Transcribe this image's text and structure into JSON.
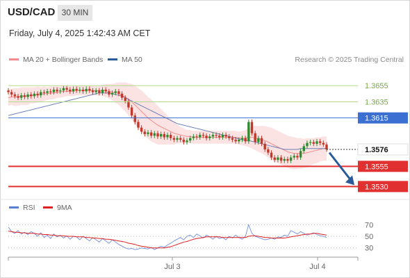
{
  "header": {
    "symbol": "USD/CAD",
    "timeframe": "30 MIN"
  },
  "timestamp": "Friday, July 4, 2025 1:42:43 AM CET",
  "credit": "Research © 2025 Trading Central",
  "legend": [
    {
      "label": "MA 20 + Bollinger Bands",
      "color": "#f28c8c"
    },
    {
      "label": "MA 50",
      "color": "#2a5a9a"
    }
  ],
  "rsi_legend": [
    {
      "label": "RSI",
      "color": "#5b7fd6"
    },
    {
      "label": "9MA",
      "color": "#e02020"
    }
  ],
  "colors": {
    "up": "#2e8b2e",
    "down": "#c0392b",
    "resistance": "#b5d98a",
    "pivot": "#3b6fd1",
    "support": "#e03030",
    "arrow": "#2a5a9a"
  },
  "chart_data": [
    {
      "type": "candlestick",
      "y_range": [
        1.352,
        1.3675
      ],
      "x_labels": [
        "Jul 3",
        "Jul 4"
      ],
      "current_price": "1.3576",
      "levels": [
        {
          "label": "1.3655",
          "value": 1.3655,
          "kind": "resistance"
        },
        {
          "label": "1.3635",
          "value": 1.3635,
          "kind": "resistance"
        },
        {
          "label": "1.3615",
          "value": 1.3615,
          "kind": "pivot"
        },
        {
          "label": "1.3555",
          "value": 1.3555,
          "kind": "support"
        },
        {
          "label": "1.3530",
          "value": 1.353,
          "kind": "support"
        }
      ],
      "close": [
        1.3647,
        1.3644,
        1.3642,
        1.364,
        1.3643,
        1.3641,
        1.3644,
        1.3642,
        1.3645,
        1.3643,
        1.3647,
        1.3646,
        1.3648,
        1.3647,
        1.365,
        1.3648,
        1.3649,
        1.3652,
        1.365,
        1.3648,
        1.3651,
        1.3649,
        1.365,
        1.3648,
        1.3651,
        1.3649,
        1.3647,
        1.3649,
        1.3646,
        1.365,
        1.3648,
        1.3644,
        1.3646,
        1.3648,
        1.3645,
        1.364,
        1.3636,
        1.3628,
        1.3618,
        1.361,
        1.3603,
        1.3598,
        1.3595,
        1.3597,
        1.3593,
        1.3596,
        1.3592,
        1.3595,
        1.3591,
        1.3594,
        1.359,
        1.3588,
        1.359,
        1.3588,
        1.3585,
        1.3587,
        1.359,
        1.3592,
        1.3591,
        1.3594,
        1.3593,
        1.359,
        1.3592,
        1.3594,
        1.3593,
        1.3591,
        1.3594,
        1.3592,
        1.359,
        1.3588,
        1.3586,
        1.3588,
        1.359,
        1.3586,
        1.361,
        1.3596,
        1.3585,
        1.359,
        1.3583,
        1.3576,
        1.3572,
        1.3566,
        1.3563,
        1.3566,
        1.3562,
        1.3564,
        1.3562,
        1.3566,
        1.3568,
        1.3566,
        1.3574,
        1.358,
        1.3584,
        1.3585,
        1.3583,
        1.3586,
        1.3584,
        1.3582,
        1.3576
      ],
      "ma20": [
        1.364,
        1.3641,
        1.3641,
        1.3641,
        1.3642,
        1.3642,
        1.3642,
        1.3643,
        1.3643,
        1.3644,
        1.3644,
        1.3645,
        1.3645,
        1.3646,
        1.3646,
        1.3647,
        1.3647,
        1.3648,
        1.3648,
        1.3648,
        1.3648,
        1.3649,
        1.3649,
        1.3649,
        1.3649,
        1.3649,
        1.3649,
        1.3649,
        1.3649,
        1.3649,
        1.3649,
        1.3648,
        1.3647,
        1.3646,
        1.3645,
        1.3643,
        1.3641,
        1.3638,
        1.3635,
        1.3631,
        1.3627,
        1.3623,
        1.3619,
        1.3615,
        1.3612,
        1.3609,
        1.3606,
        1.3604,
        1.3602,
        1.36,
        1.3598,
        1.3596,
        1.3595,
        1.3594,
        1.3593,
        1.3592,
        1.3592,
        1.3591,
        1.3591,
        1.3591,
        1.3591,
        1.3591,
        1.3591,
        1.3591,
        1.3591,
        1.3591,
        1.3591,
        1.3591,
        1.3591,
        1.3591,
        1.3591,
        1.359,
        1.359,
        1.359,
        1.3591,
        1.3591,
        1.359,
        1.3589,
        1.3588,
        1.3587,
        1.3585,
        1.3583,
        1.3581,
        1.3579,
        1.3577,
        1.3575,
        1.3573,
        1.3572,
        1.3571,
        1.3571,
        1.3571,
        1.3571,
        1.3572,
        1.3573,
        1.3574,
        1.3575,
        1.3576,
        1.3577,
        1.3577
      ],
      "ma50": [
        1.3618,
        1.3619,
        1.362,
        1.3621,
        1.3622,
        1.3623,
        1.3624,
        1.3625,
        1.3626,
        1.3627,
        1.3628,
        1.3629,
        1.363,
        1.3631,
        1.3632,
        1.3633,
        1.3634,
        1.3635,
        1.3636,
        1.3637,
        1.3638,
        1.3639,
        1.364,
        1.3641,
        1.3642,
        1.3643,
        1.3644,
        1.3645,
        1.3646,
        1.3646,
        1.3646,
        1.3646,
        1.3645,
        1.3644,
        1.3643,
        1.3642,
        1.364,
        1.3638,
        1.3636,
        1.3634,
        1.3632,
        1.363,
        1.3628,
        1.3626,
        1.3624,
        1.3622,
        1.362,
        1.3618,
        1.3616,
        1.3614,
        1.3612,
        1.361,
        1.3608,
        1.3607,
        1.3606,
        1.3605,
        1.3604,
        1.3603,
        1.3602,
        1.3601,
        1.36,
        1.3599,
        1.3598,
        1.3597,
        1.3596,
        1.3595,
        1.3594,
        1.3593,
        1.3592,
        1.3591,
        1.359,
        1.3589,
        1.3588,
        1.3587,
        1.3587,
        1.3586,
        1.3585,
        1.3584,
        1.3583,
        1.3582,
        1.3581,
        1.358,
        1.3579,
        1.3578,
        1.3577,
        1.3576,
        1.3576,
        1.3576,
        1.3576,
        1.3576,
        1.3577,
        1.3577,
        1.3577,
        1.3577,
        1.3577,
        1.3577,
        1.3577,
        1.3577,
        1.3577
      ],
      "bb_width": [
        0.001,
        0.001,
        0.0011,
        0.0011,
        0.0011,
        0.0011,
        0.0011,
        0.001,
        0.001,
        0.001,
        0.0009,
        0.0009,
        0.0008,
        0.0008,
        0.0008,
        0.0007,
        0.0007,
        0.0007,
        0.0006,
        0.0006,
        0.0006,
        0.0006,
        0.0006,
        0.0006,
        0.0006,
        0.0006,
        0.0006,
        0.0006,
        0.0006,
        0.0007,
        0.0008,
        0.0009,
        0.001,
        0.0012,
        0.0014,
        0.0016,
        0.0018,
        0.002,
        0.0022,
        0.0024,
        0.0025,
        0.0026,
        0.0026,
        0.0026,
        0.0026,
        0.0025,
        0.0024,
        0.0022,
        0.002,
        0.0018,
        0.0016,
        0.0014,
        0.0012,
        0.001,
        0.0009,
        0.0008,
        0.0008,
        0.0008,
        0.0008,
        0.0008,
        0.0008,
        0.0008,
        0.0008,
        0.0008,
        0.0008,
        0.0008,
        0.0008,
        0.0008,
        0.0008,
        0.0008,
        0.0008,
        0.0008,
        0.0009,
        0.001,
        0.0012,
        0.0014,
        0.0015,
        0.0016,
        0.0017,
        0.0018,
        0.0019,
        0.002,
        0.002,
        0.002,
        0.002,
        0.002,
        0.002,
        0.002,
        0.002,
        0.0019,
        0.0019,
        0.0018,
        0.0018,
        0.0017,
        0.0016,
        0.0016,
        0.0015,
        0.0015,
        0.0015
      ],
      "forecast_target": 1.353
    },
    {
      "type": "line",
      "title": "RSI",
      "y_range": [
        20,
        80
      ],
      "y_ticks": [
        70,
        50,
        30
      ],
      "series": [
        {
          "name": "RSI",
          "values": [
            66,
            58,
            55,
            60,
            54,
            57,
            53,
            58,
            55,
            50,
            56,
            48,
            52,
            46,
            54,
            49,
            52,
            47,
            51,
            45,
            50,
            49,
            44,
            50,
            46,
            42,
            48,
            44,
            40,
            46,
            42,
            38,
            44,
            40,
            36,
            33,
            30,
            28,
            29,
            27,
            28,
            30,
            29,
            28,
            31,
            27,
            30,
            33,
            31,
            35,
            38,
            42,
            45,
            48,
            44,
            50,
            52,
            48,
            54,
            51,
            47,
            52,
            49,
            45,
            50,
            46,
            48,
            44,
            50,
            47,
            52,
            48,
            45,
            50,
            70,
            55,
            50,
            48,
            46,
            44,
            45,
            47,
            45,
            49,
            48,
            52,
            50,
            60,
            57,
            54,
            58,
            55,
            52,
            54,
            56,
            53,
            51,
            50,
            48
          ]
        },
        {
          "name": "9MA",
          "values": [
            59,
            58,
            57,
            57,
            56,
            56,
            55,
            55,
            55,
            54,
            54,
            53,
            53,
            52,
            52,
            51,
            51,
            51,
            50,
            50,
            50,
            49,
            49,
            49,
            48,
            48,
            47,
            47,
            46,
            46,
            45,
            45,
            44,
            43,
            42,
            41,
            40,
            38,
            37,
            36,
            34,
            33,
            32,
            31,
            30,
            30,
            30,
            30,
            30,
            31,
            32,
            34,
            36,
            38,
            40,
            41,
            43,
            45,
            46,
            47,
            48,
            49,
            49,
            49,
            49,
            49,
            48,
            48,
            48,
            48,
            48,
            48,
            48,
            48,
            50,
            51,
            51,
            50,
            49,
            48,
            48,
            47,
            47,
            47,
            47,
            47,
            48,
            49,
            50,
            51,
            52,
            53,
            54,
            54,
            55,
            55,
            54,
            53,
            52
          ]
        }
      ]
    }
  ]
}
